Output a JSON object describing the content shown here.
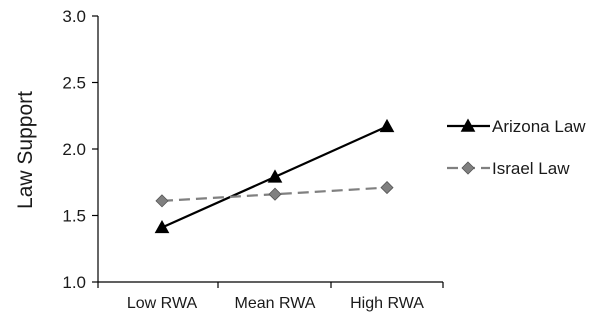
{
  "chart_data": {
    "type": "line",
    "title": "",
    "xlabel": "",
    "ylabel": "Law Support",
    "categories": [
      "Low RWA",
      "Mean RWA",
      "High RWA"
    ],
    "ylim": [
      1.0,
      3.0
    ],
    "yticks": [
      "1.0",
      "1.5",
      "2.0",
      "2.5",
      "3.0"
    ],
    "grid": false,
    "legend_position": "right",
    "series": [
      {
        "name": "Arizona Law",
        "values": [
          1.41,
          1.79,
          2.17
        ],
        "color": "#000000",
        "line_style": "solid",
        "marker": "triangle"
      },
      {
        "name": "Israel Law",
        "values": [
          1.61,
          1.66,
          1.71
        ],
        "color": "#808080",
        "line_style": "dashed",
        "marker": "diamond"
      }
    ]
  }
}
